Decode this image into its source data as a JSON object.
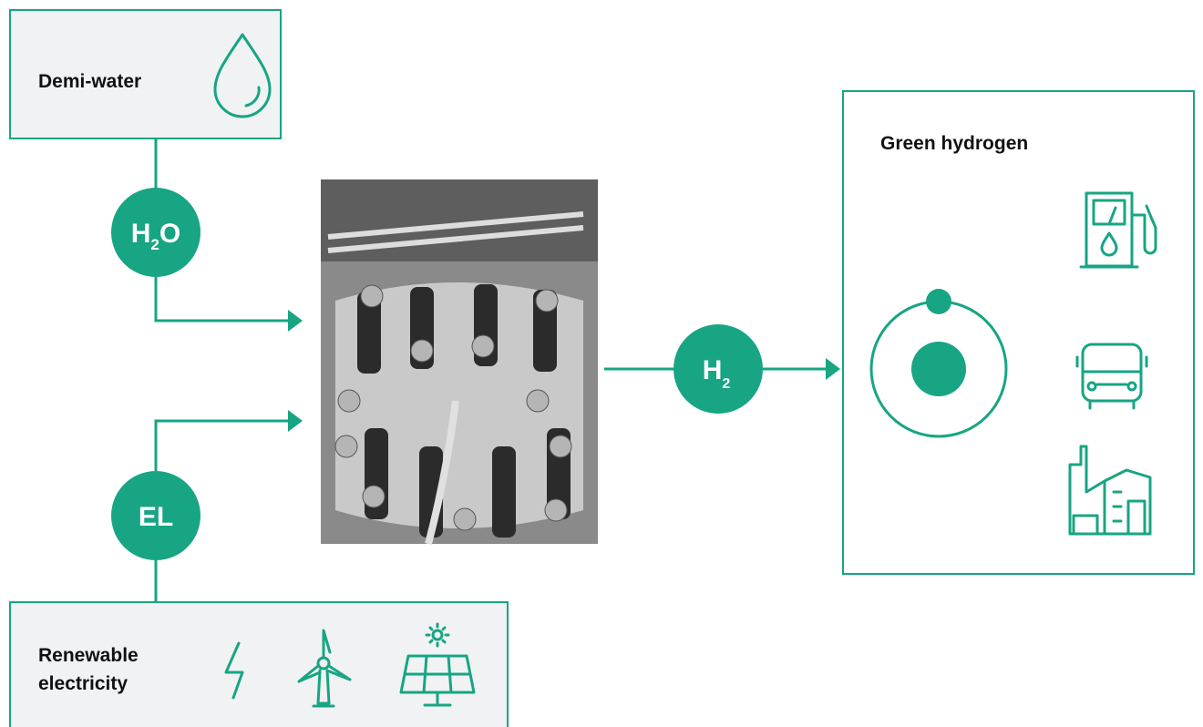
{
  "source_box": {
    "title": "Demi-water"
  },
  "water_badge": {
    "parts": [
      "H",
      "2",
      "O"
    ]
  },
  "electricity_badge": {
    "label": "EL"
  },
  "hydrogen_badge": {
    "parts": [
      "H",
      "2"
    ]
  },
  "output_box": {
    "title": "Green hydrogen"
  },
  "energy_box": {
    "lines": [
      "Renewable",
      "electricity"
    ]
  }
}
